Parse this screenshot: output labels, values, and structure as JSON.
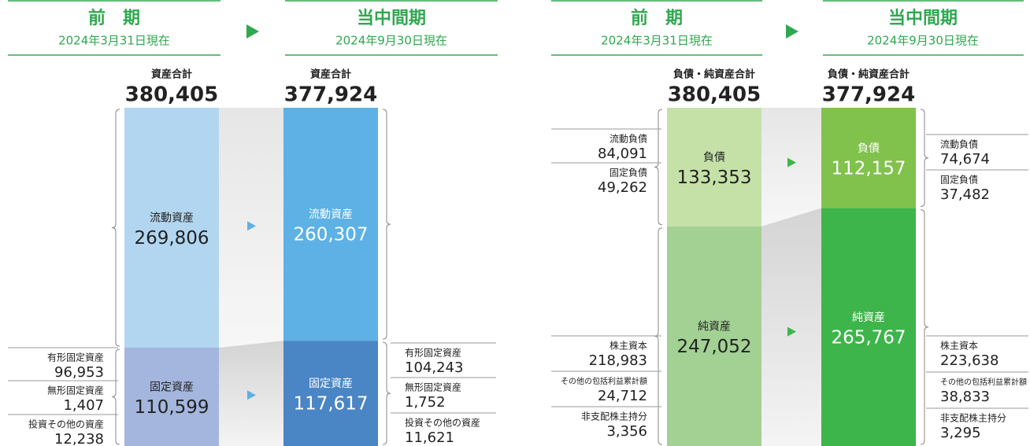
{
  "headers": [
    {
      "period": "前　期",
      "date": "2024年3月31日現在"
    },
    {
      "period": "当中間期",
      "date": "2024年9月30日現在"
    }
  ],
  "assets": {
    "total_label": "資産合計",
    "columns": [
      {
        "total": {
          "value": 380405,
          "label": "380,405"
        },
        "segments": [
          {
            "name": "流動資産",
            "value": {
              "value": 269806,
              "label": "269,806"
            },
            "details": []
          },
          {
            "name": "固定資産",
            "value": {
              "value": 110599,
              "label": "110,599"
            },
            "details": [
              {
                "name": "有形固定資産",
                "value": {
                  "value": 96953,
                  "label": "96,953"
                }
              },
              {
                "name": "無形固定資産",
                "value": {
                  "value": 1407,
                  "label": "1,407"
                }
              },
              {
                "name": "投資その他の資産",
                "value": {
                  "value": 12238,
                  "label": "12,238"
                }
              }
            ]
          }
        ]
      },
      {
        "total": {
          "value": 377924,
          "label": "377,924"
        },
        "segments": [
          {
            "name": "流動資産",
            "value": {
              "value": 260307,
              "label": "260,307"
            },
            "details": []
          },
          {
            "name": "固定資産",
            "value": {
              "value": 117617,
              "label": "117,617"
            },
            "details": [
              {
                "name": "有形固定資産",
                "value": {
                  "value": 104243,
                  "label": "104,243"
                }
              },
              {
                "name": "無形固定資産",
                "value": {
                  "value": 1752,
                  "label": "1,752"
                }
              },
              {
                "name": "投資その他の資産",
                "value": {
                  "value": 11621,
                  "label": "11,621"
                }
              }
            ]
          }
        ]
      }
    ]
  },
  "liabilities": {
    "total_label": "負債・純資産合計",
    "columns": [
      {
        "total": {
          "value": 380405,
          "label": "380,405"
        },
        "segments": [
          {
            "name": "負債",
            "value": {
              "value": 133353,
              "label": "133,353"
            },
            "details": [
              {
                "name": "流動負債",
                "value": {
                  "value": 84091,
                  "label": "84,091"
                }
              },
              {
                "name": "固定負債",
                "value": {
                  "value": 49262,
                  "label": "49,262"
                }
              }
            ]
          },
          {
            "name": "純資産",
            "value": {
              "value": 247052,
              "label": "247,052"
            },
            "details": [
              {
                "name": "株主資本",
                "value": {
                  "value": 218983,
                  "label": "218,983"
                }
              },
              {
                "name": "その他の包括利益累計額",
                "value": {
                  "value": 24712,
                  "label": "24,712"
                }
              },
              {
                "name": "非支配株主持分",
                "value": {
                  "value": 3356,
                  "label": "3,356"
                }
              }
            ]
          }
        ]
      },
      {
        "total": {
          "value": 377924,
          "label": "377,924"
        },
        "segments": [
          {
            "name": "負債",
            "value": {
              "value": 112157,
              "label": "112,157"
            },
            "details": [
              {
                "name": "流動負債",
                "value": {
                  "value": 74674,
                  "label": "74,674"
                }
              },
              {
                "name": "固定負債",
                "value": {
                  "value": 37482,
                  "label": "37,482"
                }
              }
            ]
          },
          {
            "name": "純資産",
            "value": {
              "value": 265767,
              "label": "265,767"
            },
            "details": [
              {
                "name": "株主資本",
                "value": {
                  "value": 223638,
                  "label": "223,638"
                }
              },
              {
                "name": "その他の包括利益累計額",
                "value": {
                  "value": 38833,
                  "label": "38,833"
                }
              },
              {
                "name": "非支配株主持分",
                "value": {
                  "value": 3295,
                  "label": "3,295"
                }
              }
            ]
          }
        ]
      }
    ]
  }
}
